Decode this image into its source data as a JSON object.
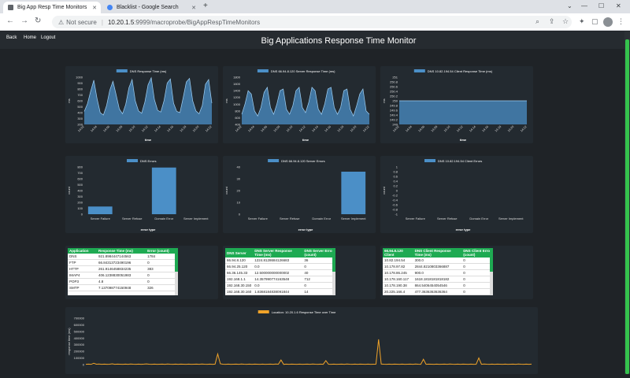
{
  "browser": {
    "tabs": [
      {
        "title": "Big App Resp Time Monitors",
        "active": true
      },
      {
        "title": "Blacklist - Google Search",
        "active": false
      }
    ],
    "url_prefix": "Not secure",
    "url_domain": "10.20.1.5",
    "url_path": ":9999/macroprobe/BigAppRespTimeMonitors"
  },
  "nav": {
    "back": "Back",
    "home": "Home",
    "logout": "Logout"
  },
  "page_title": "Big Applications Response Time Monitor",
  "colors": {
    "bar": "#4b8fc7",
    "area": "#4b8fc7",
    "orange": "#f0a329",
    "header": "#1eaa52"
  },
  "chart_data": [
    {
      "type": "area",
      "legend": "DNS Response Time (ms)",
      "ylabel": "ms",
      "xlabel": "time",
      "yticks": [
        1000,
        900,
        800,
        700,
        600,
        500,
        400,
        300,
        200
      ],
      "ylim": [
        200,
        1000
      ],
      "xticks": [
        "14:02",
        "14:04",
        "14:06",
        "14:08",
        "14:10",
        "14:12",
        "14:14",
        "14:16",
        "14:18",
        "14:20",
        "14:22"
      ],
      "values": [
        420,
        550,
        760,
        950,
        640,
        400,
        360,
        520,
        780,
        930,
        700,
        460,
        380,
        540,
        820,
        960,
        600,
        430,
        390,
        580,
        870,
        990,
        620,
        440,
        410,
        600,
        900,
        970,
        560,
        420,
        400,
        650,
        920,
        980,
        600,
        430,
        380,
        520,
        880,
        960,
        560
      ]
    },
    {
      "type": "area",
      "legend": "DNS 66.94.8.120 Server Response Time (ms)",
      "ylabel": "ms",
      "xlabel": "time",
      "yticks": [
        1800,
        1600,
        1400,
        1200,
        1000,
        800,
        600,
        400
      ],
      "ylim": [
        400,
        1800
      ],
      "xticks": [
        "14:02",
        "14:04",
        "14:06",
        "14:08",
        "14:10",
        "14:12",
        "14:14",
        "14:16",
        "14:18",
        "14:20",
        "14:22"
      ],
      "values": [
        700,
        1000,
        1400,
        1300,
        800,
        650,
        900,
        1350,
        1500,
        900,
        700,
        1000,
        1400,
        1450,
        850,
        700,
        950,
        1400,
        1500,
        900,
        750,
        1050,
        1500,
        1400,
        850,
        700,
        1000,
        1450,
        1500,
        900,
        700,
        900,
        1400,
        1450,
        850,
        650,
        950,
        1300,
        1450,
        800,
        700
      ]
    },
    {
      "type": "area",
      "legend": "DNS 10.82.194.54 Client Response Time (ms)",
      "ylabel": "ms",
      "xlabel": "time",
      "yticks": [
        251.0,
        250.8,
        250.6,
        250.4,
        250.2,
        250.0,
        249.8,
        249.6,
        249.4,
        249.2,
        249.0
      ],
      "ylim": [
        249.0,
        251.0
      ],
      "xticks": [
        "14:02",
        "14:04",
        "14:06",
        "14:08",
        "14:10",
        "14:12",
        "14:14",
        "14:16",
        "14:18",
        "14:20",
        "14:22"
      ],
      "values": [
        250,
        250,
        250,
        250,
        250,
        250,
        250,
        250,
        250,
        250,
        250,
        250,
        250,
        250,
        250,
        250,
        250,
        250,
        250,
        250,
        250,
        250
      ]
    },
    {
      "type": "bar",
      "legend": "DNS Errors",
      "ylabel": "count",
      "xlabel": "error type",
      "yticks": [
        800,
        700,
        600,
        500,
        400,
        300,
        200,
        100,
        0
      ],
      "ylim": [
        0,
        800
      ],
      "categories": [
        "Server Failure",
        "Server Refuse",
        "Domain Error",
        "Server Implement"
      ],
      "values": [
        130,
        0,
        790,
        0
      ]
    },
    {
      "type": "bar",
      "legend": "DNS 66.94.8.120 Server Errors",
      "ylabel": "count",
      "xlabel": "error type",
      "yticks": [
        40,
        30,
        20,
        10,
        0
      ],
      "ylim": [
        0,
        40
      ],
      "categories": [
        "Server Failure",
        "Server Refuse",
        "Domain Error",
        "Server Implement"
      ],
      "values": [
        0,
        0,
        0,
        36
      ]
    },
    {
      "type": "bar",
      "legend": "DNS 10.82.194.54 Client Errors",
      "ylabel": "count",
      "xlabel": "error type",
      "yticks": [
        1.0,
        0.8,
        0.6,
        0.4,
        0.2,
        0.0,
        -0.2,
        -0.4,
        -0.6,
        -0.8,
        -1.0
      ],
      "ylim": [
        -1.0,
        1.0
      ],
      "categories": [
        "Server Failure",
        "Server Refuse",
        "Domain Error",
        "Server Implement"
      ],
      "values": [
        0,
        0,
        0,
        0
      ]
    },
    {
      "type": "line",
      "legend": "Location: 10.20.1.6 Response Time over Time",
      "ylabel": "response time (ms)",
      "yticks": [
        700000,
        600000,
        500000,
        400000,
        300000,
        200000,
        100000,
        0
      ],
      "ylim": [
        0,
        700000
      ],
      "values": [
        5000,
        8000,
        4000,
        20000,
        6000,
        9000,
        5000,
        7000,
        4000,
        6000,
        12000,
        5000,
        8000,
        6000,
        4000,
        7000,
        5000,
        9000,
        6000,
        4000,
        8000,
        5000,
        7000,
        10000,
        6000,
        5000,
        8000,
        4000,
        6000,
        7000,
        5000,
        9000,
        6000,
        4000,
        8000,
        5000,
        7000,
        6000,
        5000,
        8000,
        4000,
        6000,
        7000,
        5000,
        9000,
        6000,
        4000,
        8000,
        5000,
        7000,
        160000,
        12000,
        6000,
        5000,
        8000,
        4000,
        6000,
        7000,
        5000,
        9000,
        6000,
        4000,
        8000,
        5000,
        7000,
        6000,
        5000,
        8000,
        4000,
        6000,
        7000,
        5000,
        9000,
        6000,
        70000,
        4000,
        8000,
        5000,
        7000,
        6000,
        5000,
        8000,
        4000,
        6000,
        7000,
        5000,
        9000,
        6000,
        4000,
        8000,
        5000,
        60000,
        6000,
        5000,
        8000,
        4000,
        6000,
        7000,
        5000,
        9000,
        6000,
        4000,
        8000,
        5000,
        7000,
        6000,
        5000,
        8000,
        4000,
        6000,
        7000,
        380000,
        9000,
        6000,
        4000,
        8000,
        5000,
        7000,
        6000,
        5000,
        8000,
        4000,
        6000,
        7000,
        5000,
        9000,
        6000,
        4000,
        80000,
        5000,
        7000,
        6000,
        5000,
        8000,
        4000,
        6000,
        7000,
        5000,
        9000,
        6000,
        4000,
        8000,
        5000,
        7000,
        6000,
        5000,
        8000,
        4000,
        6000,
        100000,
        5000,
        9000,
        6000,
        4000,
        8000,
        5000,
        7000,
        6000,
        5000,
        8000,
        4000,
        6000,
        7000,
        5000,
        9000,
        6000,
        4000,
        8000,
        5000,
        7000
      ]
    }
  ],
  "tables": [
    {
      "headers": [
        "Application",
        "Response Time (ms)",
        "Error (count)"
      ],
      "rows": [
        [
          "DNS",
          "921.8984447144563",
          "1784"
        ],
        [
          "FTP",
          "66.84313723490196",
          "0"
        ],
        [
          "HTTP",
          "261.9146458834235",
          "383"
        ],
        [
          "IMAP4",
          "406.1238830051983",
          "0"
        ],
        [
          "POP3",
          "4.8",
          "0"
        ],
        [
          "SMTP",
          "7.137098774150948",
          "326"
        ]
      ]
    },
    {
      "headers": [
        "DNS Server",
        "DNS Server Response Time (ms)",
        "DNS Server Error (count)"
      ],
      "rows": [
        [
          "66.94.8.120",
          "1224.8128684126683",
          "36"
        ],
        [
          "66.94.25.120",
          "0.0",
          "0"
        ],
        [
          "66.36.145.33",
          "12.500000000000002",
          "40"
        ],
        [
          "192.168.1.1",
          "14.357990774163548",
          "712"
        ],
        [
          "192.168.30.150",
          "0.0",
          "0"
        ],
        [
          "192.168.30.160",
          "1.8368184838091844",
          "14"
        ]
      ]
    },
    {
      "headers": [
        "66.94.8.120 Client",
        "DNS Client Response Time (ms)",
        "DNS Client Error (count)"
      ],
      "rows": [
        [
          "10.82.194.54",
          "300.0",
          "0"
        ],
        [
          "10.178.97.82",
          "2844.8210803366887",
          "0"
        ],
        [
          "10.178.86.245",
          "900.0",
          "0"
        ],
        [
          "10.178.160.117",
          "1618.1818181818182",
          "0"
        ],
        [
          "10.178.190.38",
          "864.5406454054546",
          "0"
        ],
        [
          "20.225.166.4",
          "477.3636363636364",
          "0"
        ]
      ]
    }
  ]
}
